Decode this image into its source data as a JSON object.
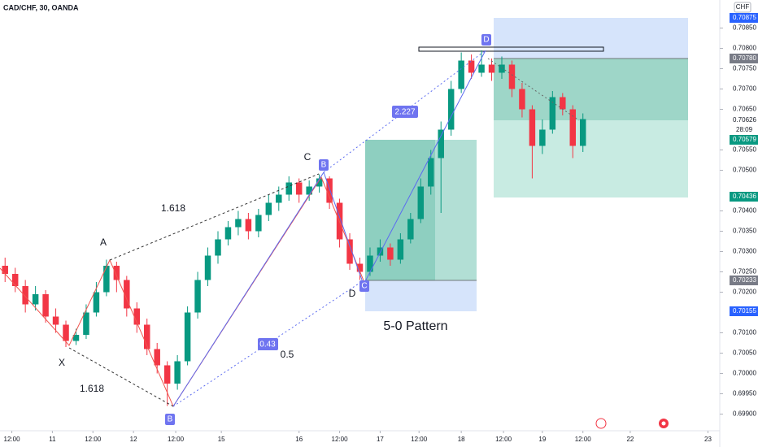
{
  "chart_data": {
    "type": "candlestick",
    "title": "CAD/CHF, 30, OANDA",
    "currency": "CHF",
    "up_color": "#089981",
    "down_color": "#f23645",
    "grid": false,
    "x": [
      -3,
      3,
      9,
      15,
      21,
      27,
      33,
      39,
      45,
      51,
      57,
      63,
      69,
      75,
      81,
      87,
      93,
      99,
      105,
      111,
      117,
      123,
      129,
      135,
      141,
      147,
      153,
      159,
      165,
      171,
      177,
      183,
      189,
      195,
      201,
      207,
      213,
      219,
      225,
      231,
      237,
      243,
      249,
      255,
      261,
      267,
      273,
      279,
      285,
      291,
      297,
      303,
      309,
      315,
      321,
      327,
      333,
      339
    ],
    "open": [
      0.70265,
      0.70245,
      0.70215,
      0.7017,
      0.70195,
      0.7014,
      0.7012,
      0.7008,
      0.70095,
      0.7015,
      0.702,
      0.70265,
      0.7023,
      0.7016,
      0.7012,
      0.7006,
      0.7002,
      0.69975,
      0.7003,
      0.7015,
      0.7023,
      0.7029,
      0.7033,
      0.7036,
      0.7038,
      0.7035,
      0.7039,
      0.7042,
      0.7044,
      0.7047,
      0.7044,
      0.7046,
      0.7048,
      0.7042,
      0.7033,
      0.7027,
      0.7025,
      0.7029,
      0.7031,
      0.7028,
      0.7033,
      0.7038,
      0.7046,
      0.7053,
      0.706,
      0.707,
      0.7077,
      0.7074,
      0.7076,
      0.7074,
      0.7076,
      0.707,
      0.7065,
      0.7056,
      0.706,
      0.7068,
      0.7065,
      0.7056
    ],
    "high": [
      0.70285,
      0.7026,
      0.7023,
      0.70215,
      0.70205,
      0.7016,
      0.7013,
      0.7011,
      0.7017,
      0.70225,
      0.7028,
      0.70275,
      0.7024,
      0.70175,
      0.70135,
      0.70075,
      0.7003,
      0.70045,
      0.70165,
      0.7025,
      0.7031,
      0.7035,
      0.70375,
      0.704,
      0.70395,
      0.70405,
      0.7044,
      0.7046,
      0.70485,
      0.7048,
      0.70475,
      0.7049,
      0.70485,
      0.7043,
      0.70345,
      0.70285,
      0.7031,
      0.7033,
      0.7032,
      0.70345,
      0.70395,
      0.7048,
      0.7055,
      0.7062,
      0.7072,
      0.7079,
      0.70785,
      0.70795,
      0.70775,
      0.7078,
      0.7077,
      0.70715,
      0.7066,
      0.70625,
      0.70695,
      0.7069,
      0.7066,
      0.7064
    ],
    "low": [
      0.70225,
      0.702,
      0.7015,
      0.70155,
      0.70125,
      0.701,
      0.70065,
      0.7007,
      0.70085,
      0.7014,
      0.7019,
      0.702,
      0.7014,
      0.701,
      0.70045,
      0.7,
      0.6992,
      0.6996,
      0.7002,
      0.70135,
      0.70215,
      0.7027,
      0.70315,
      0.7034,
      0.7033,
      0.70335,
      0.70375,
      0.704,
      0.70425,
      0.7042,
      0.70425,
      0.70445,
      0.70405,
      0.7031,
      0.70255,
      0.7023,
      0.7024,
      0.70275,
      0.70265,
      0.7027,
      0.7032,
      0.7037,
      0.7044,
      0.70395,
      0.70585,
      0.7069,
      0.70725,
      0.7073,
      0.7072,
      0.70725,
      0.7068,
      0.7063,
      0.7048,
      0.7054,
      0.7059,
      0.70635,
      0.7053,
      0.70545
    ],
    "close": [
      0.70245,
      0.70215,
      0.7017,
      0.70195,
      0.7014,
      0.7012,
      0.7008,
      0.70095,
      0.7015,
      0.702,
      0.70265,
      0.7023,
      0.7016,
      0.7012,
      0.7006,
      0.7002,
      0.69975,
      0.7003,
      0.7015,
      0.7023,
      0.7029,
      0.7033,
      0.7036,
      0.7038,
      0.7035,
      0.7039,
      0.7042,
      0.7044,
      0.7047,
      0.7044,
      0.7046,
      0.7048,
      0.7042,
      0.7033,
      0.7027,
      0.7025,
      0.7029,
      0.7031,
      0.7028,
      0.7033,
      0.7038,
      0.7046,
      0.7053,
      0.706,
      0.707,
      0.7077,
      0.7074,
      0.7076,
      0.7074,
      0.7076,
      0.707,
      0.7065,
      0.7056,
      0.706,
      0.7068,
      0.7065,
      0.7056,
      0.70626
    ],
    "xlim": [
      -6,
      420
    ],
    "ylim": [
      0.69859,
      0.70919
    ],
    "xticks": [
      {
        "value": 1,
        "label": "12:00"
      },
      {
        "value": 25,
        "label": "11"
      },
      {
        "value": 49,
        "label": "12:00"
      },
      {
        "value": 73,
        "label": "12"
      },
      {
        "value": 98,
        "label": "12:00"
      },
      {
        "value": 125,
        "label": "15"
      },
      {
        "value": 171,
        "label": "16"
      },
      {
        "value": 195,
        "label": "12:00"
      },
      {
        "value": 219,
        "label": "17"
      },
      {
        "value": 242,
        "label": "12:00"
      },
      {
        "value": 267,
        "label": "18"
      },
      {
        "value": 292,
        "label": "12:00"
      },
      {
        "value": 315,
        "label": "19"
      },
      {
        "value": 339,
        "label": "12:00"
      },
      {
        "value": 367,
        "label": "22"
      },
      {
        "value": 413,
        "label": "23"
      }
    ],
    "yticks": [
      {
        "value": 0.7085,
        "label": "0.70850"
      },
      {
        "value": 0.708,
        "label": "0.70800"
      },
      {
        "value": 0.7075,
        "label": "0.70750"
      },
      {
        "value": 0.707,
        "label": "0.70700"
      },
      {
        "value": 0.7065,
        "label": "0.70650"
      },
      {
        "value": 0.7055,
        "label": "0.70550"
      },
      {
        "value": 0.705,
        "label": "0.70500"
      },
      {
        "value": 0.704,
        "label": "0.70400"
      },
      {
        "value": 0.7035,
        "label": "0.70350"
      },
      {
        "value": 0.703,
        "label": "0.70300"
      },
      {
        "value": 0.7025,
        "label": "0.70250"
      },
      {
        "value": 0.702,
        "label": "0.70200"
      },
      {
        "value": 0.701,
        "label": "0.70100"
      },
      {
        "value": 0.7005,
        "label": "0.70050"
      },
      {
        "value": 0.7,
        "label": "0.70000"
      },
      {
        "value": 0.6995,
        "label": "0.69950"
      },
      {
        "value": 0.699,
        "label": "0.69900"
      }
    ],
    "price_tags": [
      "0.70875",
      "0.70780",
      "0.70626",
      "28:09",
      "0.70579",
      "0.70436",
      "0.70233",
      "0.70155"
    ],
    "annotations": [
      "A",
      "X",
      "B",
      "C",
      "D",
      "1.618",
      "1.618",
      "0.5",
      "0.43",
      "2.227",
      "5-0 Pattern",
      "B",
      "C",
      "D"
    ]
  }
}
